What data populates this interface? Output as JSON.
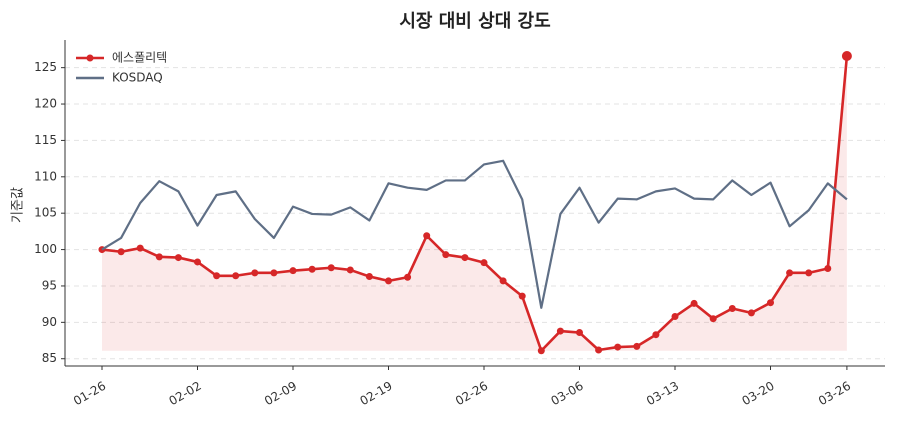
{
  "chart_data": {
    "type": "line",
    "title": "시장 대비 상대 강도",
    "ylabel": "기준값",
    "categories": [
      "01-26",
      null,
      null,
      null,
      null,
      "02-02",
      null,
      null,
      null,
      null,
      "02-09",
      null,
      null,
      null,
      null,
      "02-19",
      null,
      null,
      null,
      null,
      "02-26",
      null,
      null,
      null,
      null,
      "03-06",
      null,
      null,
      null,
      null,
      "03-13",
      null,
      null,
      null,
      null,
      "03-20",
      null,
      null,
      null,
      "03-26"
    ],
    "series": [
      {
        "name": "에스폴리텍",
        "color": "#d62728",
        "fill": true,
        "markers": true,
        "values": [
          100,
          99.7,
          100.2,
          99.0,
          98.9,
          98.3,
          96.4,
          96.4,
          96.8,
          96.8,
          97.1,
          97.3,
          97.5,
          97.2,
          96.3,
          95.7,
          96.2,
          101.9,
          99.3,
          98.9,
          98.2,
          95.7,
          93.6,
          86.1,
          88.8,
          88.6,
          86.2,
          86.6,
          86.7,
          88.3,
          90.8,
          92.6,
          90.5,
          91.9,
          91.3,
          92.7,
          96.8,
          96.8,
          97.4,
          126.6
        ]
      },
      {
        "name": "KOSDAQ",
        "color": "#5f6f86",
        "fill": false,
        "markers": false,
        "values": [
          100,
          101.6,
          106.4,
          109.4,
          108.0,
          103.3,
          107.5,
          108.0,
          104.2,
          101.6,
          105.9,
          104.9,
          104.8,
          105.8,
          104.0,
          109.1,
          108.5,
          108.2,
          109.5,
          109.5,
          111.7,
          112.2,
          106.9,
          92.0,
          104.9,
          108.5,
          103.7,
          107.0,
          106.9,
          108.0,
          108.4,
          107.0,
          106.9,
          109.5,
          107.5,
          109.2,
          103.2,
          105.4,
          109.1,
          106.9
        ]
      }
    ],
    "ylim": [
      84,
      128.8
    ],
    "yticks": [
      85,
      90,
      95,
      100,
      105,
      110,
      115,
      120,
      125
    ],
    "grid": true,
    "legend": "upper-left"
  }
}
